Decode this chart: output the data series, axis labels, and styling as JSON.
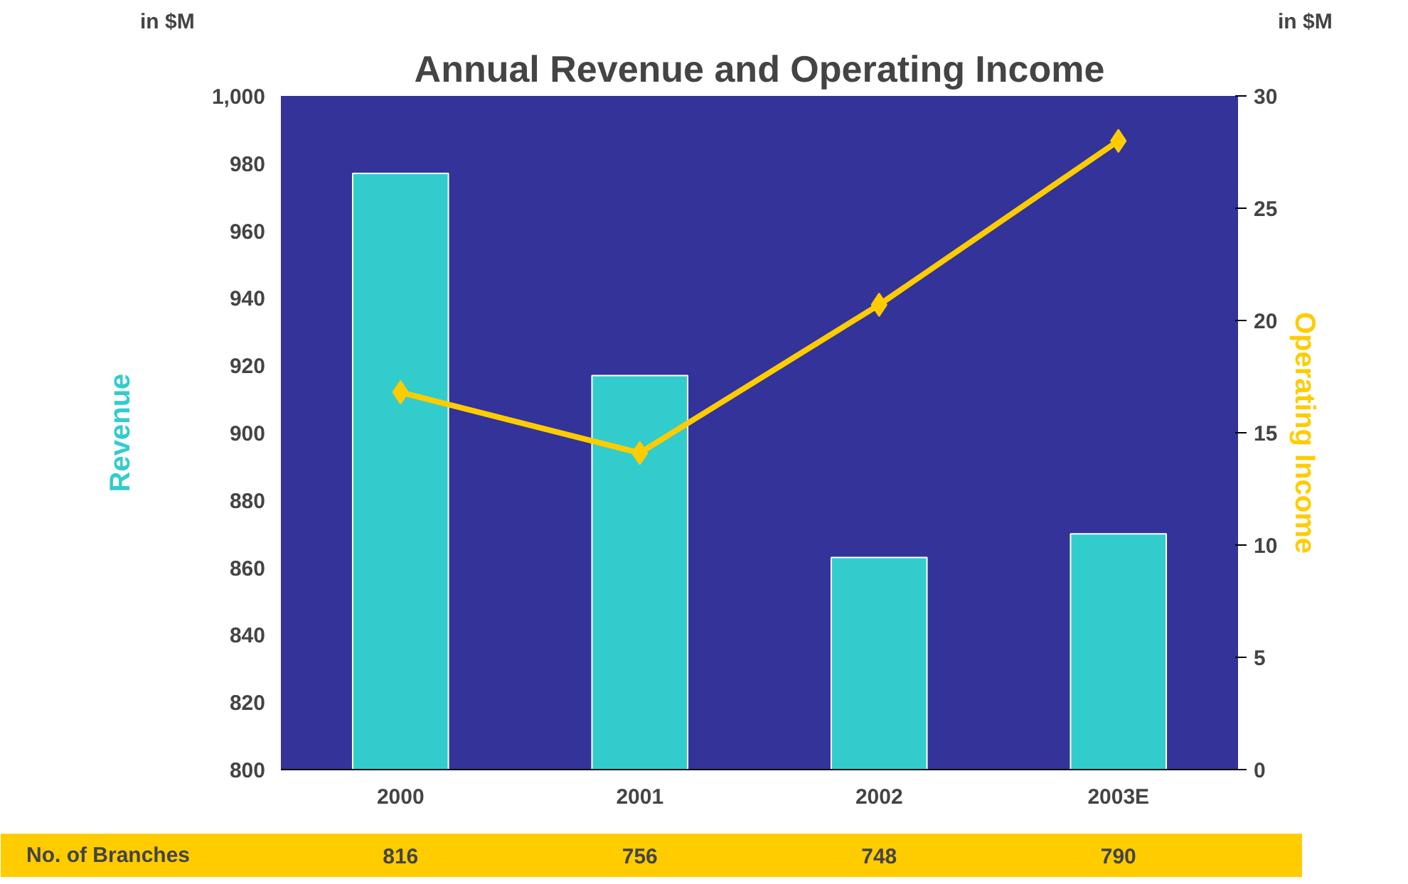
{
  "chart_data": {
    "type": "bar",
    "title": "Annual Revenue and Operating Income",
    "categories": [
      "2000",
      "2001",
      "2002",
      "2003E"
    ],
    "series": [
      {
        "name": "Revenue",
        "color": "#33cccc",
        "values": [
          977,
          917,
          863,
          870
        ]
      },
      {
        "name": "Operating Income",
        "type": "line",
        "axis": "y2",
        "color": "#ffcc00",
        "marker": "diamond",
        "values": [
          16.8,
          14.1,
          20.7,
          28.0
        ]
      }
    ],
    "ylim": [
      800,
      1000
    ],
    "yticks": [
      {
        "value": 800,
        "label": "800"
      },
      {
        "value": 820,
        "label": "820"
      },
      {
        "value": 840,
        "label": "840"
      },
      {
        "value": 860,
        "label": "860"
      },
      {
        "value": 880,
        "label": "880"
      },
      {
        "value": 900,
        "label": "900"
      },
      {
        "value": 920,
        "label": "920"
      },
      {
        "value": 940,
        "label": "940"
      },
      {
        "value": 960,
        "label": "960"
      },
      {
        "value": 980,
        "label": "980"
      },
      {
        "value": 1000,
        "label": "1,000"
      }
    ],
    "y2lim": [
      0,
      30
    ],
    "y2ticks": [
      0,
      5,
      10,
      15,
      20,
      25,
      30
    ],
    "grid": false,
    "annotations": [
      "in $M",
      "in $M",
      "No. of Branches",
      "816",
      "756",
      "748",
      "790"
    ]
  }
}
